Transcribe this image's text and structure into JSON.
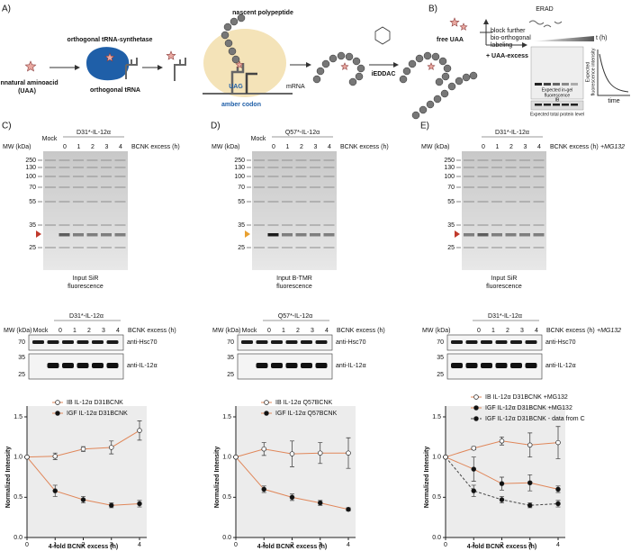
{
  "panel_a": {
    "label": "A)",
    "uaa": [
      "Unnatural aminoacid",
      "(UAA)"
    ],
    "synthetase": "orthogonal tRNA-synthetase",
    "trna": "orthogonal tRNA",
    "polypeptide": "nascent polypeptide",
    "codon": "UAG",
    "amber": "amber codon",
    "mrna": "mRNA",
    "reaction": "iEDDAC"
  },
  "panel_b": {
    "label": "B)",
    "free_uaa": "free UAA",
    "block": [
      "block further",
      "bio-orthogonal",
      "labeling"
    ],
    "excess": "+ UAA-excess",
    "erad": "ERAD",
    "time_axis": "t (h)",
    "ylabel": [
      "Expected",
      "fluorescence intensity"
    ],
    "xlabel": "time",
    "in_gel": [
      "Expected in-gel",
      "fluorescence"
    ],
    "ib": "IB",
    "total": "Expected total protein level"
  },
  "panels": [
    {
      "label": "C)",
      "gel": {
        "header": "D31*-IL-12α",
        "mock": "Mock",
        "lanes": [
          "0",
          "1",
          "2",
          "3",
          "4"
        ],
        "excess": "BCNK excess (h)",
        "mw": "MW (kDa)",
        "markers": [
          "250",
          "130",
          "100",
          "70",
          "55",
          "35",
          "25"
        ],
        "caption": [
          "Input SiR",
          "fluorescence"
        ]
      },
      "blot": {
        "header": "D31*-IL-12α",
        "mock": "Mock",
        "lanes": [
          "0",
          "1",
          "2",
          "3",
          "4"
        ],
        "excess": "BCNK excess (h)",
        "mw": "MW (kDa)",
        "markers": [
          "70",
          "35",
          "25"
        ],
        "antibodies": [
          "anti-Hsc70",
          "anti-IL-12α"
        ]
      }
    },
    {
      "label": "D)",
      "gel": {
        "header": "Q57*-IL-12α",
        "mock": "Mock",
        "lanes": [
          "0",
          "1",
          "2",
          "3",
          "4"
        ],
        "excess": "BCNK excess (h)",
        "mw": "MW (kDa)",
        "markers": [
          "250",
          "130",
          "100",
          "70",
          "55",
          "35",
          "25"
        ],
        "caption": [
          "Input B-TMR",
          "fluorescence"
        ]
      },
      "blot": {
        "header": "Q57*-IL-12α",
        "mock": "Mock",
        "lanes": [
          "0",
          "1",
          "2",
          "3",
          "4"
        ],
        "excess": "BCNK excess (h)",
        "mw": "MW (kDa)",
        "markers": [
          "70",
          "35",
          "25"
        ],
        "antibodies": [
          "anti-Hsc70",
          "anti-IL-12α"
        ]
      }
    },
    {
      "label": "E)",
      "gel": {
        "header": "D31*-IL-12α",
        "lanes": [
          "0",
          "1",
          "2",
          "3",
          "4"
        ],
        "excess": "BCNK excess (h)",
        "treatment": "+MG132",
        "mw": "MW (kDa)",
        "markers": [
          "250",
          "130",
          "100",
          "70",
          "55",
          "35",
          "25"
        ],
        "caption": [
          "Input SiR",
          "fluorescence"
        ]
      },
      "blot": {
        "header": "D31*-IL-12α",
        "lanes": [
          "0",
          "1",
          "2",
          "3",
          "4"
        ],
        "excess": "BCNK excess (h)",
        "treatment": "+MG132",
        "mw": "MW (kDa)",
        "markers": [
          "70",
          "35",
          "25"
        ],
        "antibodies": [
          "anti-Hsc70",
          "anti-IL-12α"
        ]
      }
    }
  ],
  "chart_data": [
    {
      "type": "line",
      "xlabel": "4-fold BCNK excess (h)",
      "ylabel": "Normalized Intensity",
      "x": [
        0,
        1,
        2,
        3,
        4
      ],
      "xlim": [
        0,
        4
      ],
      "xticks": [
        0,
        1,
        2,
        3,
        4
      ],
      "ylim": [
        0,
        1.5
      ],
      "yticks": [
        {
          "value": 0,
          "label": "0.0"
        },
        {
          "value": 0.5,
          "label": "0.5"
        },
        {
          "value": 1,
          "label": "1.0"
        },
        {
          "value": 1.5,
          "label": "1.5"
        }
      ],
      "series": [
        {
          "name": "IB IL-12α D31BCNK",
          "color": "#e0875a",
          "marker": "open",
          "values": [
            1.0,
            1.01,
            1.1,
            1.12,
            1.33
          ],
          "errors": [
            0,
            0.04,
            0.03,
            0.08,
            0.12
          ]
        },
        {
          "name": "IGF IL-12α D31BCNK",
          "color": "#e0875a",
          "marker": "filled",
          "values": [
            1.0,
            0.58,
            0.47,
            0.4,
            0.42
          ],
          "errors": [
            0,
            0.07,
            0.04,
            0.03,
            0.04
          ]
        }
      ]
    },
    {
      "type": "line",
      "xlabel": "4-fold BCNK excess (h)",
      "ylabel": "Normalized Intensity",
      "x": [
        0,
        1,
        2,
        3,
        4
      ],
      "xlim": [
        0,
        4
      ],
      "xticks": [
        0,
        1,
        2,
        3,
        4
      ],
      "ylim": [
        0,
        1.5
      ],
      "yticks": [
        {
          "value": 0,
          "label": "0.0"
        },
        {
          "value": 0.5,
          "label": "0.5"
        },
        {
          "value": 1,
          "label": "1.0"
        },
        {
          "value": 1.5,
          "label": "1.5"
        }
      ],
      "series": [
        {
          "name": "IB IL-12α Q57BCNK",
          "color": "#e0875a",
          "marker": "open",
          "values": [
            1.0,
            1.1,
            1.04,
            1.05,
            1.05
          ],
          "errors": [
            0,
            0.08,
            0.16,
            0.13,
            0.19
          ]
        },
        {
          "name": "IGF IL-12α Q57BCNK",
          "color": "#e0875a",
          "marker": "filled",
          "values": [
            1.0,
            0.6,
            0.5,
            0.43,
            0.35
          ],
          "errors": [
            0,
            0.04,
            0.04,
            0.03,
            0.02
          ]
        }
      ]
    },
    {
      "type": "line",
      "xlabel": "4-fold BCNK excess (h)",
      "ylabel": "Normalized Intensity",
      "x": [
        0,
        1,
        2,
        3,
        4
      ],
      "xlim": [
        0,
        4
      ],
      "xticks": [
        0,
        1,
        2,
        3,
        4
      ],
      "ylim": [
        0,
        1.5
      ],
      "yticks": [
        {
          "value": 0,
          "label": "0.0"
        },
        {
          "value": 0.5,
          "label": "0.5"
        },
        {
          "value": 1,
          "label": "1.0"
        },
        {
          "value": 1.5,
          "label": "1.5"
        }
      ],
      "series": [
        {
          "name": "IB IL-12α D31BCNK +MG132",
          "color": "#e0875a",
          "marker": "open",
          "values": [
            1.0,
            1.11,
            1.2,
            1.15,
            1.18
          ],
          "errors": [
            0,
            0.02,
            0.05,
            0.15,
            0.2
          ]
        },
        {
          "name": "IGF IL-12α D31BCNK +MG132",
          "color": "#e0875a",
          "marker": "filled",
          "values": [
            1.0,
            0.85,
            0.67,
            0.68,
            0.6
          ],
          "errors": [
            0,
            0.15,
            0.08,
            0.1,
            0.04
          ]
        },
        {
          "name": "IGF IL-12α D31BCNK - data from C",
          "color": "#444444",
          "marker": "filled",
          "dash": true,
          "values": [
            1.0,
            0.58,
            0.47,
            0.4,
            0.42
          ],
          "errors": [
            0,
            0.07,
            0.04,
            0.03,
            0.04
          ]
        }
      ]
    }
  ]
}
